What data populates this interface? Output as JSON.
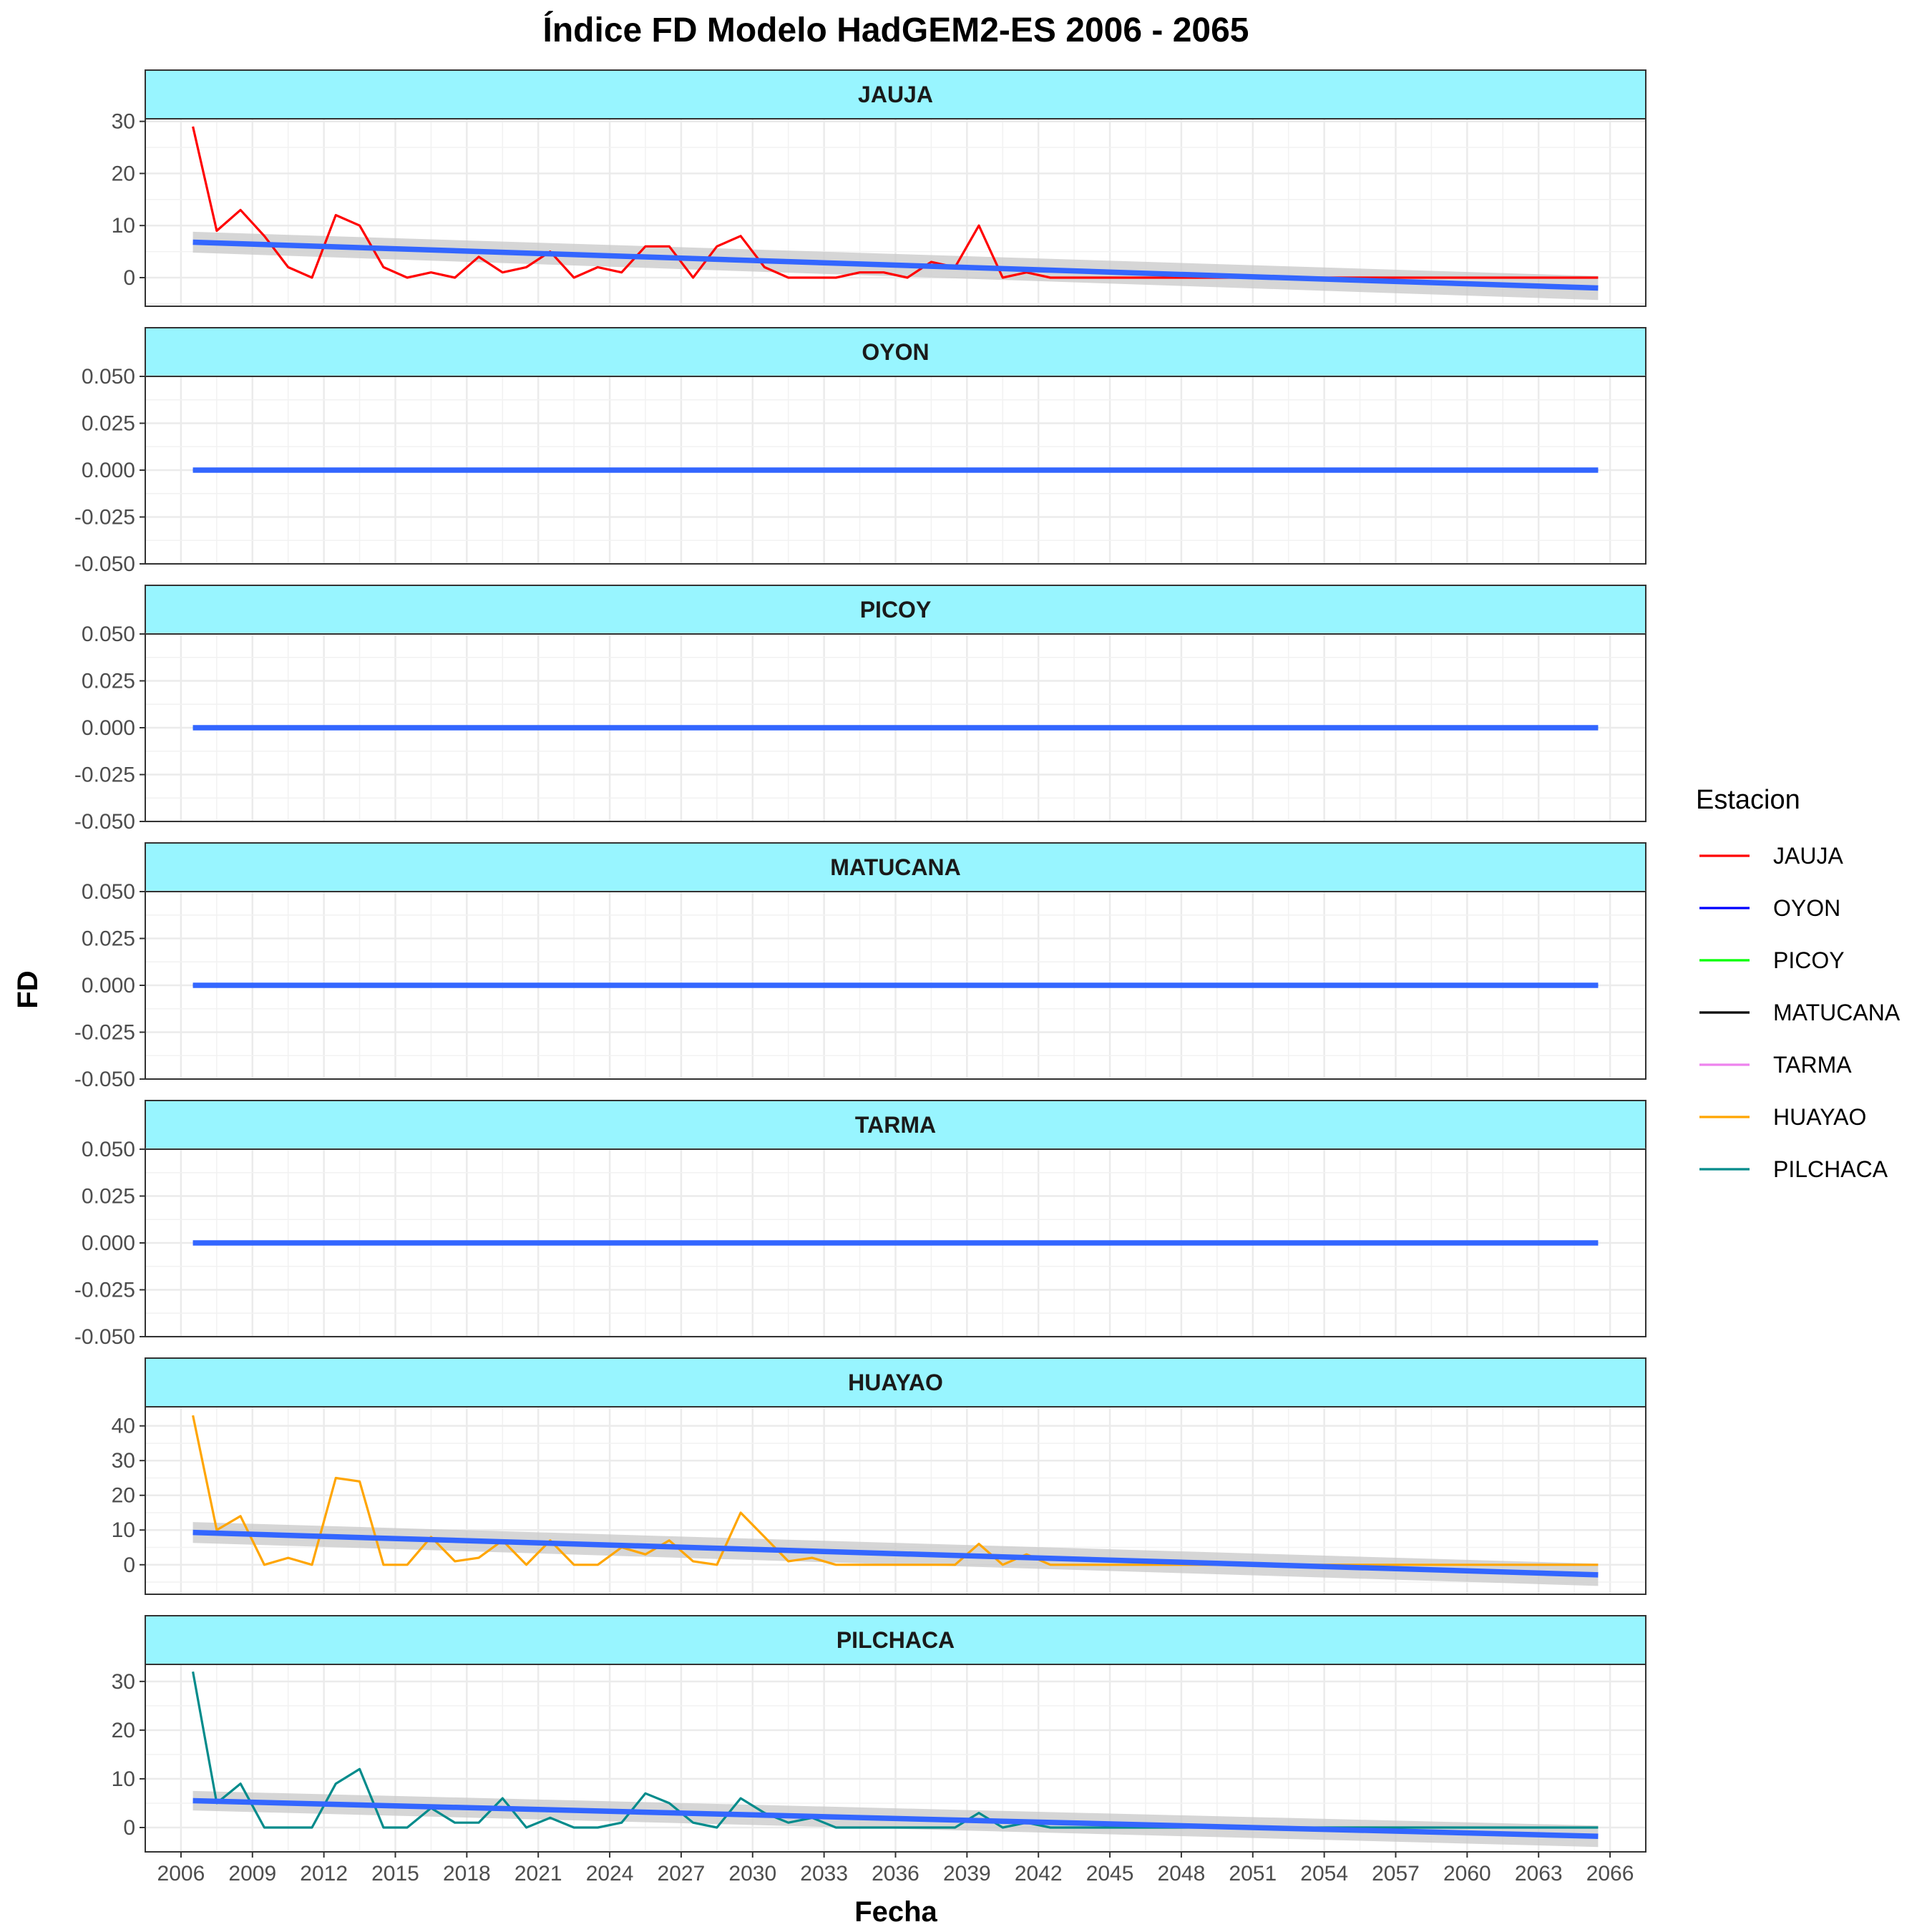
{
  "chart_data": {
    "type": "line",
    "title": "Índice FD Modelo HadGEM2-ES 2006 - 2065",
    "xlabel": "Fecha",
    "ylabel": "FD",
    "xlim": [
      2004.5,
      2067.5
    ],
    "x_ticks": [
      2006,
      2009,
      2012,
      2015,
      2018,
      2021,
      2024,
      2027,
      2030,
      2033,
      2036,
      2039,
      2042,
      2045,
      2048,
      2051,
      2054,
      2057,
      2060,
      2063,
      2066
    ],
    "x_tick_labels": [
      "2006",
      "2009",
      "2012",
      "2015",
      "2018",
      "2021",
      "2024",
      "2027",
      "2030",
      "2033",
      "2036",
      "2039",
      "2042",
      "2045",
      "2048",
      "2051",
      "2054",
      "2057",
      "2060",
      "2063",
      "2066"
    ],
    "grid": true,
    "legend": {
      "title": "Estacion",
      "placement": "right",
      "entries": [
        {
          "name": "JAUJA",
          "color": "#ff0000"
        },
        {
          "name": "OYON",
          "color": "#0000ff"
        },
        {
          "name": "PICOY",
          "color": "#00ff00"
        },
        {
          "name": "MATUCANA",
          "color": "#000000"
        },
        {
          "name": "TARMA",
          "color": "#ee82ee"
        },
        {
          "name": "HUAYAO",
          "color": "#ffa500"
        },
        {
          "name": "PILCHACA",
          "color": "#008b8b"
        }
      ]
    },
    "trend_color": "#3366ff",
    "band_color": "#c8c8c8",
    "panels": [
      {
        "name": "JAUJA",
        "color": "#ff0000",
        "ylim": [
          -5.5,
          30.5
        ],
        "y_ticks": [
          0,
          10,
          20,
          30
        ],
        "y_tick_labels": [
          "0",
          "10",
          "20",
          "30"
        ],
        "x": [
          2006.5,
          2007.5,
          2008.5,
          2009.5,
          2010.5,
          2011.5,
          2012.5,
          2013.5,
          2014.5,
          2015.5,
          2016.5,
          2017.5,
          2018.5,
          2019.5,
          2020.5,
          2021.5,
          2022.5,
          2023.5,
          2024.5,
          2025.5,
          2026.5,
          2027.5,
          2028.5,
          2029.5,
          2030.5,
          2031.5,
          2032.5,
          2033.5,
          2034.5,
          2035.5,
          2036.5,
          2037.5,
          2038.5,
          2039.5,
          2040.5,
          2041.5,
          2042.5,
          2065.5
        ],
        "values": [
          29,
          9,
          13,
          8,
          2,
          0,
          12,
          10,
          2,
          0,
          1,
          0,
          4,
          1,
          2,
          5,
          0,
          2,
          1,
          6,
          6,
          0,
          6,
          8,
          2,
          0,
          0,
          0,
          1,
          1,
          0,
          3,
          2,
          10,
          0,
          1,
          0,
          0
        ],
        "trend": {
          "start": [
            2006.5,
            6.8
          ],
          "end": [
            2065.5,
            -2.0
          ],
          "band_start": 2.0,
          "band_end": 2.3
        }
      },
      {
        "name": "OYON",
        "color": "#0000ff",
        "ylim": [
          -0.05,
          0.05
        ],
        "y_ticks": [
          -0.05,
          -0.025,
          0,
          0.025,
          0.05
        ],
        "y_tick_labels": [
          "-0.050",
          "-0.025",
          "0.000",
          "0.025",
          "0.050"
        ],
        "x": [
          2006.5,
          2065.5
        ],
        "values": [
          0,
          0
        ],
        "trend": {
          "start": [
            2006.5,
            0
          ],
          "end": [
            2065.5,
            0
          ],
          "band_start": 0,
          "band_end": 0
        }
      },
      {
        "name": "PICOY",
        "color": "#00ff00",
        "ylim": [
          -0.05,
          0.05
        ],
        "y_ticks": [
          -0.05,
          -0.025,
          0,
          0.025,
          0.05
        ],
        "y_tick_labels": [
          "-0.050",
          "-0.025",
          "0.000",
          "0.025",
          "0.050"
        ],
        "x": [
          2006.5,
          2065.5
        ],
        "values": [
          0,
          0
        ],
        "trend": {
          "start": [
            2006.5,
            0
          ],
          "end": [
            2065.5,
            0
          ],
          "band_start": 0,
          "band_end": 0
        }
      },
      {
        "name": "MATUCANA",
        "color": "#000000",
        "ylim": [
          -0.05,
          0.05
        ],
        "y_ticks": [
          -0.05,
          -0.025,
          0,
          0.025,
          0.05
        ],
        "y_tick_labels": [
          "-0.050",
          "-0.025",
          "0.000",
          "0.025",
          "0.050"
        ],
        "x": [
          2006.5,
          2065.5
        ],
        "values": [
          0,
          0
        ],
        "trend": {
          "start": [
            2006.5,
            0
          ],
          "end": [
            2065.5,
            0
          ],
          "band_start": 0,
          "band_end": 0
        }
      },
      {
        "name": "TARMA",
        "color": "#ee82ee",
        "ylim": [
          -0.05,
          0.05
        ],
        "y_ticks": [
          -0.05,
          -0.025,
          0,
          0.025,
          0.05
        ],
        "y_tick_labels": [
          "-0.050",
          "-0.025",
          "0.000",
          "0.025",
          "0.050"
        ],
        "x": [
          2006.5,
          2065.5
        ],
        "values": [
          0,
          0
        ],
        "trend": {
          "start": [
            2006.5,
            0
          ],
          "end": [
            2065.5,
            0
          ],
          "band_start": 0,
          "band_end": 0
        }
      },
      {
        "name": "HUAYAO",
        "color": "#ffa500",
        "ylim": [
          -8.5,
          45.5
        ],
        "y_ticks": [
          0,
          10,
          20,
          30,
          40
        ],
        "y_tick_labels": [
          "0",
          "10",
          "20",
          "30",
          "40"
        ],
        "x": [
          2006.5,
          2007.5,
          2008.5,
          2009.5,
          2010.5,
          2011.5,
          2012.5,
          2013.5,
          2014.5,
          2015.5,
          2016.5,
          2017.5,
          2018.5,
          2019.5,
          2020.5,
          2021.5,
          2022.5,
          2023.5,
          2024.5,
          2025.5,
          2026.5,
          2027.5,
          2028.5,
          2029.5,
          2030.5,
          2031.5,
          2032.5,
          2033.5,
          2034.5,
          2035.5,
          2036.5,
          2037.5,
          2038.5,
          2039.5,
          2040.5,
          2041.5,
          2042.5,
          2065.5
        ],
        "values": [
          43,
          10,
          14,
          0,
          2,
          0,
          25,
          24,
          0,
          0,
          8,
          1,
          2,
          7,
          0,
          7,
          0,
          0,
          5,
          3,
          7,
          1,
          0,
          15,
          8,
          1,
          2,
          0,
          0,
          0,
          0,
          0,
          0,
          6,
          0,
          3,
          0,
          0
        ],
        "trend": {
          "start": [
            2006.5,
            9.3
          ],
          "end": [
            2065.5,
            -2.9
          ],
          "band_start": 3.0,
          "band_end": 3.2
        }
      },
      {
        "name": "PILCHACA",
        "color": "#008b8b",
        "ylim": [
          -5.0,
          33.5
        ],
        "y_ticks": [
          0,
          10,
          20,
          30
        ],
        "y_tick_labels": [
          "0",
          "10",
          "20",
          "30"
        ],
        "x": [
          2006.5,
          2007.5,
          2008.5,
          2009.5,
          2010.5,
          2011.5,
          2012.5,
          2013.5,
          2014.5,
          2015.5,
          2016.5,
          2017.5,
          2018.5,
          2019.5,
          2020.5,
          2021.5,
          2022.5,
          2023.5,
          2024.5,
          2025.5,
          2026.5,
          2027.5,
          2028.5,
          2029.5,
          2030.5,
          2031.5,
          2032.5,
          2033.5,
          2034.5,
          2035.5,
          2036.5,
          2037.5,
          2038.5,
          2039.5,
          2040.5,
          2041.5,
          2042.5,
          2065.5
        ],
        "values": [
          32,
          5,
          9,
          0,
          0,
          0,
          9,
          12,
          0,
          0,
          4,
          1,
          1,
          6,
          0,
          2,
          0,
          0,
          1,
          7,
          5,
          1,
          0,
          6,
          3,
          1,
          2,
          0,
          0,
          0,
          0,
          0,
          0,
          3,
          0,
          1,
          0,
          0
        ],
        "trend": {
          "start": [
            2006.5,
            5.5
          ],
          "end": [
            2065.5,
            -1.8
          ],
          "band_start": 2.0,
          "band_end": 2.2
        }
      }
    ]
  }
}
